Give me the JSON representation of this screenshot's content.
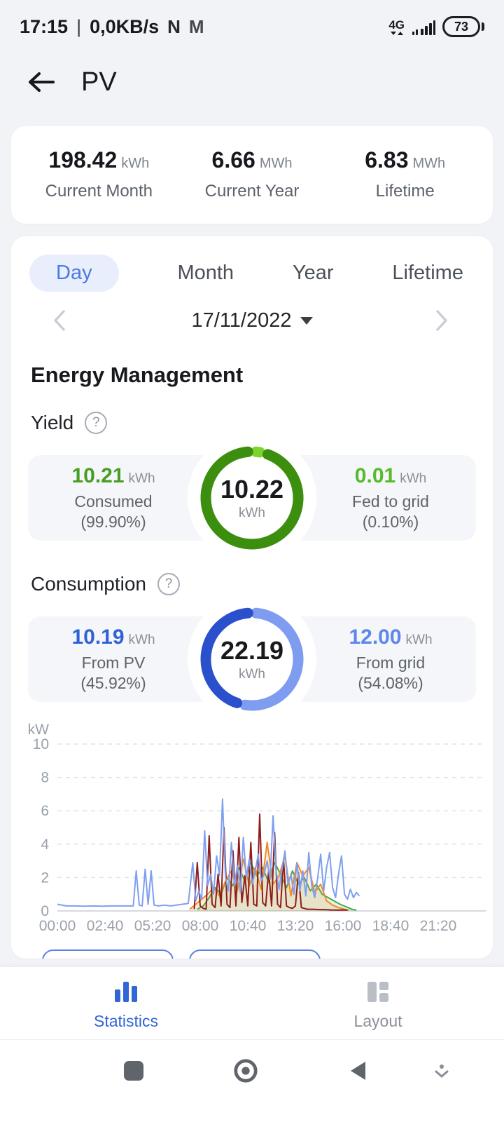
{
  "status_bar": {
    "time": "17:15",
    "separator": "|",
    "net_speed": "0,0KB/s",
    "icon_n": "N",
    "icon_gmail": "M",
    "network_type": "4G",
    "battery": "73"
  },
  "header": {
    "title": "PV"
  },
  "summary": {
    "items": [
      {
        "value": "198.42",
        "unit": "kWh",
        "label": "Current Month"
      },
      {
        "value": "6.66",
        "unit": "MWh",
        "label": "Current Year"
      },
      {
        "value": "6.83",
        "unit": "MWh",
        "label": "Lifetime"
      }
    ]
  },
  "tabs": {
    "items": [
      {
        "label": "Day",
        "active": true
      },
      {
        "label": "Month",
        "active": false
      },
      {
        "label": "Year",
        "active": false
      },
      {
        "label": "Lifetime",
        "active": false
      }
    ]
  },
  "date_nav": {
    "date": "17/11/2022"
  },
  "section": {
    "title": "Energy Management"
  },
  "icons": {
    "help": "?"
  },
  "yield": {
    "title": "Yield",
    "left": {
      "value": "10.21",
      "unit": "kWh",
      "label": "Consumed",
      "sub": "(99.90%)",
      "color": "#469e22"
    },
    "center": {
      "value": "10.22",
      "unit": "kWh"
    },
    "right": {
      "value": "0.01",
      "unit": "kWh",
      "label": "Fed to grid",
      "sub": "(0.10%)",
      "color": "#55bb2b"
    },
    "donut": {
      "segments": [
        {
          "pct": 0.1,
          "color": "#7fd32f"
        },
        {
          "pct": 99.9,
          "color": "#3c8e0e"
        }
      ]
    }
  },
  "consumption": {
    "title": "Consumption",
    "left": {
      "value": "10.19",
      "unit": "kWh",
      "label": "From PV",
      "sub": "(45.92%)",
      "color": "#2f62d8"
    },
    "center": {
      "value": "22.19",
      "unit": "kWh"
    },
    "right": {
      "value": "12.00",
      "unit": "kWh",
      "label": "From grid",
      "sub": "(54.08%)",
      "color": "#5e87ea"
    },
    "donut": {
      "segments": [
        {
          "pct": 54.08,
          "color": "#7e9cf0"
        },
        {
          "pct": 45.92,
          "color": "#2b50cc"
        }
      ]
    }
  },
  "chart_data": {
    "type": "line",
    "title": "",
    "ylabel": "kW",
    "ylim": [
      0,
      10
    ],
    "yticks": [
      0,
      2,
      4,
      6,
      8,
      10
    ],
    "x_max_minutes": 1440,
    "xtick_minutes": [
      0,
      160,
      320,
      480,
      640,
      800,
      960,
      1120,
      1280
    ],
    "xtick_labels": [
      "00:00",
      "02:40",
      "05:20",
      "08:00",
      "10:40",
      "13:20",
      "16:00",
      "18:40",
      "21:20"
    ],
    "grid": "horizontal-dashed",
    "legend_position": "hidden",
    "series": [
      {
        "name": "series-green",
        "color": "#46a84c",
        "fill": true,
        "points": [
          [
            470,
            0.1
          ],
          [
            490,
            0.3
          ],
          [
            510,
            0.8
          ],
          [
            530,
            1.4
          ],
          [
            550,
            1.0
          ],
          [
            570,
            2.0
          ],
          [
            590,
            1.5
          ],
          [
            610,
            2.6
          ],
          [
            630,
            1.8
          ],
          [
            650,
            2.9
          ],
          [
            670,
            2.1
          ],
          [
            690,
            2.6
          ],
          [
            710,
            1.7
          ],
          [
            730,
            2.9
          ],
          [
            750,
            2.2
          ],
          [
            770,
            1.4
          ],
          [
            790,
            2.4
          ],
          [
            810,
            1.6
          ],
          [
            830,
            2.0
          ],
          [
            850,
            1.2
          ],
          [
            870,
            1.6
          ],
          [
            890,
            1.0
          ],
          [
            910,
            0.8
          ],
          [
            930,
            0.6
          ],
          [
            950,
            0.4
          ],
          [
            970,
            0.25
          ],
          [
            990,
            0.1
          ],
          [
            1005,
            0.05
          ]
        ]
      },
      {
        "name": "series-orange",
        "color": "#f08a1e",
        "fill": true,
        "points": [
          [
            445,
            0.1
          ],
          [
            465,
            0.4
          ],
          [
            485,
            0.7
          ],
          [
            505,
            1.0
          ],
          [
            525,
            1.4
          ],
          [
            545,
            0.9
          ],
          [
            565,
            1.8
          ],
          [
            585,
            2.4
          ],
          [
            605,
            1.2
          ],
          [
            625,
            3.1
          ],
          [
            645,
            1.5
          ],
          [
            665,
            2.6
          ],
          [
            685,
            1.3
          ],
          [
            705,
            4.1
          ],
          [
            725,
            1.6
          ],
          [
            745,
            2.1
          ],
          [
            765,
            3.3
          ],
          [
            785,
            0.9
          ],
          [
            805,
            2.9
          ],
          [
            825,
            2.1
          ],
          [
            845,
            2.6
          ],
          [
            865,
            1.1
          ],
          [
            885,
            1.6
          ],
          [
            905,
            0.6
          ],
          [
            925,
            0.35
          ],
          [
            945,
            0.2
          ],
          [
            965,
            0.1
          ],
          [
            980,
            0.05
          ]
        ]
      },
      {
        "name": "series-darkred",
        "color": "#8f1d1d",
        "fill": false,
        "points": [
          [
            460,
            0.1
          ],
          [
            470,
            2.9
          ],
          [
            480,
            0.3
          ],
          [
            490,
            0.15
          ],
          [
            500,
            0.1
          ],
          [
            510,
            4.5
          ],
          [
            520,
            0.4
          ],
          [
            530,
            0.2
          ],
          [
            540,
            2.2
          ],
          [
            550,
            0.3
          ],
          [
            560,
            5.0
          ],
          [
            570,
            0.4
          ],
          [
            580,
            0.2
          ],
          [
            590,
            3.6
          ],
          [
            600,
            0.3
          ],
          [
            610,
            4.4
          ],
          [
            620,
            0.5
          ],
          [
            630,
            2.1
          ],
          [
            640,
            0.3
          ],
          [
            650,
            4.1
          ],
          [
            660,
            0.4
          ],
          [
            670,
            0.3
          ],
          [
            680,
            5.8
          ],
          [
            690,
            0.5
          ],
          [
            700,
            0.3
          ],
          [
            710,
            2.4
          ],
          [
            720,
            0.3
          ],
          [
            730,
            4.7
          ],
          [
            740,
            0.4
          ],
          [
            750,
            0.2
          ],
          [
            760,
            3.1
          ],
          [
            770,
            0.3
          ],
          [
            780,
            0.2
          ],
          [
            790,
            0.15
          ],
          [
            800,
            0.3
          ],
          [
            810,
            2.3
          ],
          [
            820,
            0.2
          ],
          [
            830,
            0.15
          ],
          [
            840,
            0.1
          ],
          [
            860,
            0.1
          ],
          [
            880,
            0.08
          ],
          [
            900,
            0.08
          ],
          [
            920,
            0.06
          ],
          [
            940,
            0.05
          ],
          [
            975,
            0.05
          ]
        ]
      },
      {
        "name": "series-blue",
        "color": "#7f9ff0",
        "fill": false,
        "points": [
          [
            0,
            0.4
          ],
          [
            30,
            0.3
          ],
          [
            60,
            0.3
          ],
          [
            90,
            0.28
          ],
          [
            120,
            0.3
          ],
          [
            150,
            0.28
          ],
          [
            180,
            0.3
          ],
          [
            210,
            0.3
          ],
          [
            240,
            0.3
          ],
          [
            255,
            0.3
          ],
          [
            265,
            2.4
          ],
          [
            275,
            0.35
          ],
          [
            285,
            0.3
          ],
          [
            295,
            2.5
          ],
          [
            305,
            0.4
          ],
          [
            315,
            2.4
          ],
          [
            325,
            0.35
          ],
          [
            340,
            0.3
          ],
          [
            360,
            0.35
          ],
          [
            380,
            0.3
          ],
          [
            400,
            0.35
          ],
          [
            420,
            0.4
          ],
          [
            440,
            0.45
          ],
          [
            455,
            2.9
          ],
          [
            465,
            0.6
          ],
          [
            475,
            1.2
          ],
          [
            485,
            0.7
          ],
          [
            495,
            4.8
          ],
          [
            505,
            1.5
          ],
          [
            515,
            2.2
          ],
          [
            525,
            1.0
          ],
          [
            535,
            3.3
          ],
          [
            545,
            2.1
          ],
          [
            555,
            6.7
          ],
          [
            565,
            2.0
          ],
          [
            575,
            1.2
          ],
          [
            585,
            4.1
          ],
          [
            595,
            1.5
          ],
          [
            605,
            2.7
          ],
          [
            615,
            1.1
          ],
          [
            625,
            4.4
          ],
          [
            635,
            2.0
          ],
          [
            645,
            3.1
          ],
          [
            655,
            1.6
          ],
          [
            665,
            2.4
          ],
          [
            675,
            3.4
          ],
          [
            685,
            1.8
          ],
          [
            695,
            2.2
          ],
          [
            705,
            3.0
          ],
          [
            715,
            1.9
          ],
          [
            725,
            5.7
          ],
          [
            735,
            2.4
          ],
          [
            745,
            1.3
          ],
          [
            755,
            2.5
          ],
          [
            765,
            3.6
          ],
          [
            775,
            1.6
          ],
          [
            785,
            2.2
          ],
          [
            795,
            1.0
          ],
          [
            805,
            2.9
          ],
          [
            815,
            1.2
          ],
          [
            825,
            2.4
          ],
          [
            835,
            0.9
          ],
          [
            845,
            3.5
          ],
          [
            855,
            1.5
          ],
          [
            865,
            0.8
          ],
          [
            875,
            2.0
          ],
          [
            885,
            3.4
          ],
          [
            895,
            1.2
          ],
          [
            905,
            2.6
          ],
          [
            915,
            3.5
          ],
          [
            925,
            1.4
          ],
          [
            935,
            0.8
          ],
          [
            945,
            2.2
          ],
          [
            955,
            3.3
          ],
          [
            965,
            1.0
          ],
          [
            975,
            0.7
          ],
          [
            985,
            1.3
          ],
          [
            995,
            0.8
          ],
          [
            1005,
            1.1
          ],
          [
            1015,
            0.9
          ]
        ]
      }
    ]
  },
  "bottom_nav": {
    "items": [
      {
        "label": "Statistics",
        "active": true
      },
      {
        "label": "Layout",
        "active": false
      }
    ]
  }
}
